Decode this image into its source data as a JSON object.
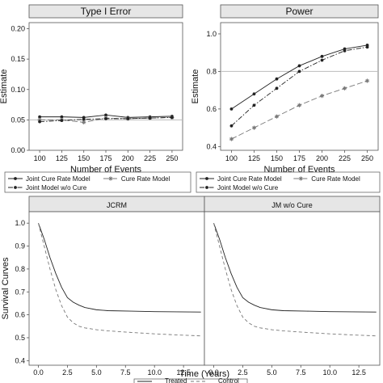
{
  "chart_data": [
    {
      "type": "line",
      "title": "Type I Error",
      "xlabel": "Number of Events",
      "ylabel": "Estimate",
      "x": [
        100,
        125,
        150,
        175,
        200,
        225,
        250
      ],
      "x_ticks": [
        "100",
        "125",
        "150",
        "175",
        "200",
        "225",
        "250"
      ],
      "ylim": [
        0,
        0.21
      ],
      "y_ticks": [
        "0.00",
        "0.05",
        "0.10",
        "0.15",
        "0.20"
      ],
      "y_tick_values": [
        0,
        0.05,
        0.1,
        0.15,
        0.2
      ],
      "reference_line": 0.05,
      "series": [
        {
          "values": [
            0.055,
            0.055,
            0.054,
            0.058,
            0.054,
            0.055,
            0.056
          ],
          "style": "solid",
          "marker": "dot"
        },
        {
          "values": [
            0.05,
            0.05,
            0.046,
            0.053,
            0.052,
            0.053,
            0.054
          ],
          "style": "longdash",
          "marker": "star"
        },
        {
          "values": [
            0.047,
            0.049,
            0.051,
            0.052,
            0.052,
            0.053,
            0.054
          ],
          "style": "dashdot",
          "marker": "dot"
        }
      ]
    },
    {
      "type": "line",
      "title": "Power",
      "xlabel": "Number of Events",
      "ylabel": "Estimate",
      "x": [
        100,
        125,
        150,
        175,
        200,
        225,
        250
      ],
      "x_ticks": [
        "100",
        "125",
        "150",
        "175",
        "200",
        "225",
        "250"
      ],
      "ylim": [
        0.38,
        1.06
      ],
      "y_ticks": [
        "0.4",
        "0.6",
        "0.8",
        "1.0"
      ],
      "y_tick_values": [
        0.4,
        0.6,
        0.8,
        1.0
      ],
      "reference_line": 0.8,
      "series": [
        {
          "values": [
            0.6,
            0.68,
            0.76,
            0.83,
            0.88,
            0.92,
            0.94
          ],
          "style": "solid",
          "marker": "dot"
        },
        {
          "values": [
            0.44,
            0.5,
            0.56,
            0.62,
            0.67,
            0.71,
            0.75
          ],
          "style": "longdash",
          "marker": "star"
        },
        {
          "values": [
            0.51,
            0.62,
            0.71,
            0.8,
            0.86,
            0.91,
            0.93
          ],
          "style": "dashdot",
          "marker": "dot"
        }
      ]
    },
    {
      "type": "line",
      "title": "JCRM",
      "xlabel": "Time (Years)",
      "ylabel": "Survival Curves",
      "xlim": [
        -0.8,
        14.3
      ],
      "x_ticks": [
        "0.0",
        "2.5",
        "5.0",
        "7.5",
        "10.0",
        "12.5"
      ],
      "x_tick_values": [
        0,
        2.5,
        5,
        7.5,
        10,
        12.5
      ],
      "ylim": [
        0.38,
        1.05
      ],
      "y_ticks": [
        "0.4",
        "0.5",
        "0.6",
        "0.7",
        "0.8",
        "0.9",
        "1.0"
      ],
      "y_tick_values": [
        0.4,
        0.5,
        0.6,
        0.7,
        0.8,
        0.9,
        1.0
      ],
      "series": [
        {
          "name": "Treated",
          "style": "solid",
          "x": [
            0,
            0.5,
            1,
            1.5,
            2,
            2.5,
            3,
            3.5,
            4,
            5,
            6,
            8,
            10,
            12,
            14
          ],
          "values": [
            1.0,
            0.93,
            0.85,
            0.78,
            0.72,
            0.675,
            0.655,
            0.642,
            0.632,
            0.622,
            0.618,
            0.616,
            0.614,
            0.613,
            0.612
          ]
        },
        {
          "name": "Control",
          "style": "dashed",
          "x": [
            0,
            0.5,
            1,
            1.5,
            2,
            2.5,
            3,
            3.5,
            4,
            5,
            6,
            8,
            10,
            12,
            14
          ],
          "values": [
            1.0,
            0.9,
            0.8,
            0.71,
            0.64,
            0.59,
            0.565,
            0.55,
            0.543,
            0.535,
            0.53,
            0.523,
            0.517,
            0.512,
            0.508
          ]
        }
      ]
    },
    {
      "type": "line",
      "title": "JM w/o Cure",
      "xlabel": "Time (Years)",
      "ylabel": "Survival Curves",
      "xlim": [
        -0.8,
        14.3
      ],
      "x_ticks": [
        "0.0",
        "2.5",
        "5.0",
        "7.5",
        "10.0",
        "12.5"
      ],
      "x_tick_values": [
        0,
        2.5,
        5,
        7.5,
        10,
        12.5
      ],
      "ylim": [
        0.38,
        1.05
      ],
      "series": [
        {
          "name": "Treated",
          "style": "solid",
          "x": [
            0,
            0.5,
            1,
            1.5,
            2,
            2.5,
            3,
            3.5,
            4,
            5,
            6,
            8,
            10,
            12,
            14
          ],
          "values": [
            1.0,
            0.93,
            0.85,
            0.78,
            0.72,
            0.675,
            0.655,
            0.642,
            0.632,
            0.622,
            0.618,
            0.616,
            0.614,
            0.613,
            0.612
          ]
        },
        {
          "name": "Control",
          "style": "dashed",
          "x": [
            0,
            0.5,
            1,
            1.5,
            2,
            2.5,
            3,
            3.5,
            4,
            5,
            6,
            8,
            10,
            12,
            14
          ],
          "values": [
            1.0,
            0.9,
            0.8,
            0.71,
            0.64,
            0.59,
            0.565,
            0.55,
            0.543,
            0.535,
            0.53,
            0.523,
            0.517,
            0.512,
            0.508
          ]
        }
      ]
    }
  ],
  "legends": {
    "top_left": [
      "Joint Cure Rate Model",
      "Cure Rate Model",
      "Joint Model w/o Cure"
    ],
    "top_right": [
      "Joint Cure Rate Model",
      "Cure Rate Model",
      "Joint Model w/o Cure"
    ],
    "bottom": [
      "Treated",
      "Control"
    ]
  },
  "colors": {
    "line": "#222222",
    "gray_line": "#777777",
    "ref_line": "#bbbbbb",
    "strip_bg": "#e6e6e6",
    "frame": "#555555"
  }
}
